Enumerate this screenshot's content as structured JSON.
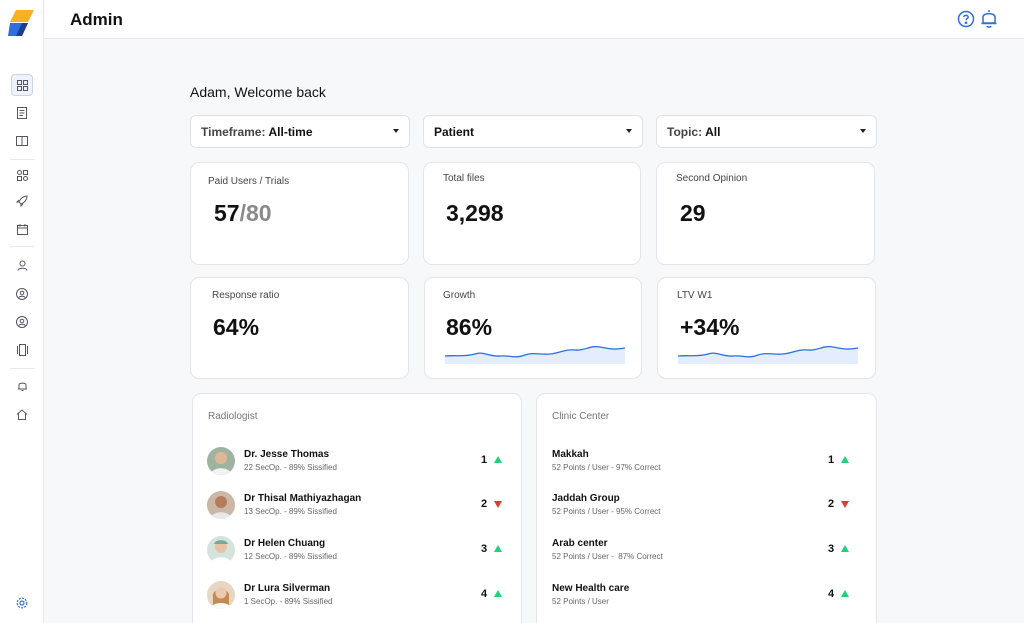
{
  "header": {
    "title": "Admin"
  },
  "welcome": "Adam, Welcome back",
  "filters": [
    {
      "label": "Timeframe:",
      "value": "All-time"
    },
    {
      "label": "",
      "value": "Patient"
    },
    {
      "label": "Topic:",
      "value": "All"
    }
  ],
  "stats": {
    "paid_users": {
      "label": "Paid Users / Trials",
      "value": "57",
      "total": "/80"
    },
    "total_files": {
      "label": "Total files",
      "value": "3,298"
    },
    "second_opinion": {
      "label": "Second Opinion",
      "value": "29"
    },
    "response_ratio": {
      "label": "Response ratio",
      "value": "64%"
    },
    "growth": {
      "label": "Growth",
      "value": "86%"
    },
    "ltv": {
      "label": "LTV W1",
      "value": "+34%"
    }
  },
  "radiologist": {
    "title": "Radiologist",
    "rows": [
      {
        "name": "Dr. Jesse Thomas",
        "sub": "22 SecOp. - 89% Sissified",
        "rank": "1",
        "trend": "up"
      },
      {
        "name": "Dr Thisal Mathiyazhagan",
        "sub": "13 SecOp. - 89% Sissified",
        "rank": "2",
        "trend": "down"
      },
      {
        "name": "Dr Helen Chuang",
        "sub": "12 SecOp. - 89% Sissified",
        "rank": "3",
        "trend": "up"
      },
      {
        "name": "Dr Lura Silverman",
        "sub": "1 SecOp. - 89% Sissified",
        "rank": "4",
        "trend": "up"
      }
    ]
  },
  "clinic": {
    "title": "Clinic Center",
    "rows": [
      {
        "name": "Makkah",
        "sub": "52 Points / User - 97% Correct",
        "rank": "1",
        "trend": "up"
      },
      {
        "name": "Jaddah Group",
        "sub": "52 Points / User - 95% Correct",
        "rank": "2",
        "trend": "down"
      },
      {
        "name": "Arab center",
        "sub": "52 Points / User -  87% Correct",
        "rank": "3",
        "trend": "up"
      },
      {
        "name": "New Health care",
        "sub": "52 Points / User",
        "rank": "4",
        "trend": "up"
      }
    ]
  },
  "colors": {
    "accent": "#2f6fdb",
    "up": "#1fd17a",
    "down": "#e53935"
  },
  "icons": [
    "logo-icon",
    "dashboard-icon",
    "document-icon",
    "book-icon",
    "grid-icon",
    "rocket-icon",
    "calendar-icon",
    "user-icon",
    "user-circle-icon",
    "user-circle-icon",
    "device-icon",
    "bell-icon",
    "home-icon",
    "gear-icon",
    "help-icon"
  ]
}
